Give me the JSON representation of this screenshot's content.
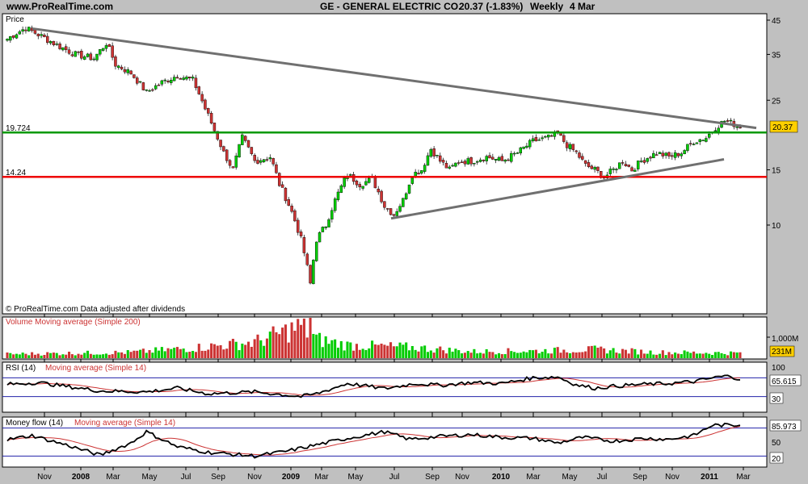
{
  "header": {
    "site": "www.ProRealTime.com",
    "title": "GE - GENERAL ELECTRIC CO.",
    "quote": "20.37 (-1.83%)",
    "period": "Weekly",
    "date": "4 Mar"
  },
  "price_panel": {
    "label": "Price",
    "footer": "© ProRealTime.com Data adjusted after dividends",
    "last_value": "20.37",
    "resistance_label": "19.724",
    "support_label": "14.24",
    "colors": {
      "up": "#00cc00",
      "down": "#cc3333",
      "resistance": "#009900",
      "support": "#ee0000",
      "trend": "#707070"
    }
  },
  "volume_panel": {
    "label": "Volume Moving average (Simple 200)",
    "scale_label": "1,000M",
    "last_value": "231M"
  },
  "rsi_panel": {
    "label": "RSI (14)",
    "ma_label": "Moving average (Simple 14)",
    "last_value": "65.615",
    "level_top": "100",
    "level_low": "30"
  },
  "mf_panel": {
    "label": "Money flow (14)",
    "ma_label": "Moving average (Simple 14)",
    "last_value": "85.973",
    "level_mid": "50",
    "level_low": "20"
  },
  "chart_data": {
    "type": "candlestick",
    "y_scale": "log",
    "y_ticks": [
      10,
      15,
      25,
      35,
      45
    ],
    "x_ticks": [
      "Nov",
      "2008",
      "Mar",
      "May",
      "Jul",
      "Sep",
      "Nov",
      "2009",
      "Mar",
      "May",
      "Jul",
      "Sep",
      "Nov",
      "2010",
      "Mar",
      "May",
      "Jul",
      "Sep",
      "Nov",
      "2011",
      "Mar"
    ],
    "resistance": 19.724,
    "support": 14.24,
    "close_anchors": [
      [
        0,
        39.2
      ],
      [
        3,
        41.0
      ],
      [
        6,
        42.5
      ],
      [
        10,
        40.5
      ],
      [
        16,
        37.5
      ],
      [
        22,
        35.0
      ],
      [
        28,
        34.0
      ],
      [
        32,
        38.0
      ],
      [
        35,
        32.5
      ],
      [
        40,
        30.5
      ],
      [
        45,
        26.5
      ],
      [
        50,
        28.5
      ],
      [
        55,
        30.0
      ],
      [
        60,
        29.0
      ],
      [
        64,
        23.5
      ],
      [
        67,
        20.0
      ],
      [
        70,
        17.0
      ],
      [
        73,
        15.0
      ],
      [
        76,
        19.0
      ],
      [
        80,
        16.0
      ],
      [
        85,
        16.5
      ],
      [
        88,
        13.5
      ],
      [
        92,
        11.0
      ],
      [
        95,
        9.0
      ],
      [
        98,
        6.5
      ],
      [
        100,
        9.0
      ],
      [
        103,
        10.0
      ],
      [
        106,
        12.0
      ],
      [
        110,
        14.5
      ],
      [
        114,
        13.5
      ],
      [
        118,
        14.0
      ],
      [
        122,
        11.5
      ],
      [
        125,
        10.8
      ],
      [
        128,
        12.0
      ],
      [
        131,
        14.5
      ],
      [
        134,
        15.0
      ],
      [
        137,
        17.5
      ],
      [
        140,
        16.0
      ],
      [
        143,
        15.0
      ],
      [
        146,
        16.0
      ],
      [
        150,
        16.0
      ],
      [
        155,
        16.5
      ],
      [
        160,
        16.0
      ],
      [
        165,
        17.0
      ],
      [
        170,
        18.5
      ],
      [
        175,
        19.0
      ],
      [
        178,
        19.5
      ],
      [
        181,
        18.0
      ],
      [
        184,
        17.0
      ],
      [
        187,
        15.5
      ],
      [
        190,
        15.0
      ],
      [
        193,
        14.2
      ],
      [
        196,
        15.0
      ],
      [
        199,
        16.0
      ],
      [
        202,
        15.0
      ],
      [
        205,
        16.0
      ],
      [
        210,
        17.0
      ],
      [
        214,
        16.5
      ],
      [
        218,
        17.0
      ],
      [
        222,
        18.5
      ],
      [
        226,
        19.0
      ],
      [
        229,
        20.5
      ],
      [
        232,
        21.5
      ],
      [
        235,
        21.0
      ],
      [
        237,
        20.37
      ]
    ],
    "volume_anchors": [
      [
        0,
        28
      ],
      [
        40,
        40
      ],
      [
        60,
        70
      ],
      [
        80,
        110
      ],
      [
        95,
        220
      ],
      [
        100,
        130
      ],
      [
        110,
        90
      ],
      [
        130,
        75
      ],
      [
        150,
        45
      ],
      [
        170,
        50
      ],
      [
        190,
        60
      ],
      [
        210,
        40
      ],
      [
        237,
        35
      ]
    ],
    "rsi_anchors": [
      [
        0,
        56
      ],
      [
        10,
        60
      ],
      [
        30,
        42
      ],
      [
        45,
        40
      ],
      [
        55,
        48
      ],
      [
        65,
        36
      ],
      [
        80,
        40
      ],
      [
        95,
        30
      ],
      [
        100,
        36
      ],
      [
        110,
        58
      ],
      [
        122,
        47
      ],
      [
        132,
        58
      ],
      [
        140,
        54
      ],
      [
        150,
        60
      ],
      [
        160,
        58
      ],
      [
        170,
        70
      ],
      [
        178,
        72
      ],
      [
        184,
        55
      ],
      [
        190,
        48
      ],
      [
        196,
        52
      ],
      [
        205,
        56
      ],
      [
        214,
        58
      ],
      [
        222,
        62
      ],
      [
        230,
        72
      ],
      [
        234,
        74
      ],
      [
        237,
        65.6
      ]
    ],
    "mf_anchors": [
      [
        0,
        55
      ],
      [
        8,
        64
      ],
      [
        20,
        42
      ],
      [
        30,
        22
      ],
      [
        40,
        48
      ],
      [
        45,
        72
      ],
      [
        55,
        40
      ],
      [
        65,
        28
      ],
      [
        80,
        20
      ],
      [
        90,
        30
      ],
      [
        100,
        44
      ],
      [
        110,
        58
      ],
      [
        122,
        72
      ],
      [
        130,
        56
      ],
      [
        140,
        62
      ],
      [
        150,
        66
      ],
      [
        160,
        60
      ],
      [
        170,
        58
      ],
      [
        178,
        48
      ],
      [
        186,
        60
      ],
      [
        196,
        52
      ],
      [
        206,
        58
      ],
      [
        214,
        56
      ],
      [
        222,
        64
      ],
      [
        228,
        86
      ],
      [
        237,
        86
      ]
    ]
  }
}
